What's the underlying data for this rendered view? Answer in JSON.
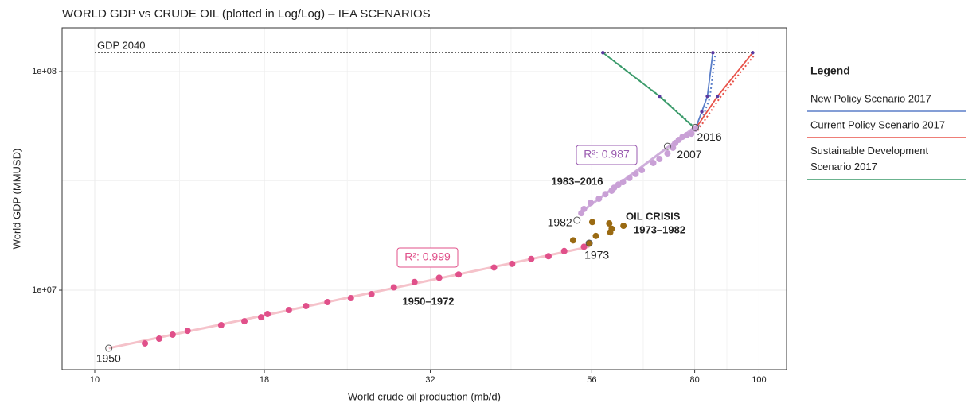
{
  "chart_data": {
    "type": "scatter",
    "title": "WORLD GDP vs CRUDE OIL (plotted in Log/Log) – IEA SCENARIOS",
    "xlabel": "World crude oil production (mb/d)",
    "ylabel": "World GDP (MMUSD)",
    "xlog": true,
    "ylog": true,
    "grid": true,
    "xlim": [
      8.93,
      110
    ],
    "ylim": [
      4330000,
      158500000
    ],
    "xticks": [
      10,
      18,
      32,
      56,
      80,
      100
    ],
    "yticks": [
      {
        "value": 10000000,
        "label": "1e+07"
      },
      {
        "value": 100000000,
        "label": "1e+08"
      }
    ],
    "series": [
      {
        "name": "1950–1972",
        "color": "#e0508a",
        "x": [
          11.9,
          12.5,
          13.1,
          13.8,
          15.5,
          16.8,
          17.8,
          18.2,
          19.6,
          20.8,
          22.4,
          24.3,
          26.1,
          28.2,
          30.3,
          33.0,
          35.3,
          39.9,
          42.5,
          45.4,
          48.2,
          50.9,
          54.5
        ],
        "y": [
          5710000,
          6000000,
          6260000,
          6520000,
          6920000,
          7210000,
          7520000,
          7780000,
          8110000,
          8460000,
          8820000,
          9200000,
          9590000,
          10300000,
          10900000,
          11400000,
          11800000,
          12700000,
          13200000,
          13900000,
          14300000,
          15100000,
          15800000
        ]
      },
      {
        "name": "1983–2016",
        "color": "#c9a0d6",
        "x": [
          54.0,
          54.5,
          55.8,
          57.4,
          58.7,
          60.0,
          60.5,
          61.4,
          62.4,
          63.8,
          65.2,
          66.6,
          69.3,
          70.8,
          72.8,
          74.2,
          74.8,
          75.7,
          76.7,
          77.8,
          79.1,
          80.2
        ],
        "y": [
          22500000,
          23500000,
          25100000,
          26200000,
          27500000,
          28500000,
          29400000,
          30400000,
          31200000,
          32600000,
          34000000,
          35400000,
          38200000,
          39800000,
          42200000,
          44800000,
          47100000,
          48700000,
          50300000,
          51200000,
          52000000,
          54700000
        ]
      },
      {
        "name": "1973–1982",
        "color": "#9a6a12",
        "x": [
          52.5,
          55.5,
          56.1,
          59.5,
          59.7,
          60.0,
          62.5,
          56.8
        ],
        "y": [
          16900000,
          16400000,
          20500000,
          20200000,
          18400000,
          19100000,
          19700000,
          17700000
        ]
      }
    ],
    "fits": [
      {
        "label": "R²: 0.999",
        "color": "#f2b3bd",
        "x": [
          10.5,
          55.5
        ],
        "y": [
          5430000,
          15800000
        ]
      },
      {
        "label": "R²: 0.987",
        "color": "#c29ad2",
        "x": [
          53.7,
          80.6
        ],
        "y": [
          22500000,
          56600000
        ]
      }
    ],
    "highlights": [
      {
        "label": "1950",
        "x": 10.5,
        "y": 5430000
      },
      {
        "label": "1973",
        "x": 55.5,
        "y": 16400000
      },
      {
        "label": "1982",
        "x": 53.2,
        "y": 20900000
      },
      {
        "label": "2007",
        "x": 72.8,
        "y": 45500000
      },
      {
        "label": "2016",
        "x": 80.2,
        "y": 55500000
      }
    ],
    "annotation": "OIL CRISIS",
    "hline": {
      "label": "GDP 2040",
      "value": 122000000,
      "x": [
        10,
        97.8
      ]
    },
    "legend": {
      "title": "Legend",
      "position": "right"
    },
    "scenarios": [
      {
        "name": "New Policy Scenario 2017",
        "color": "#5b7fc9",
        "x": [
          80.2,
          82.0,
          83.6,
          85.2
        ],
        "y": [
          54700000,
          65500000,
          77100000,
          122000000
        ]
      },
      {
        "name": "Current Policy Scenario 2017",
        "color": "#e8534a",
        "x": [
          80.2,
          86.6,
          97.8
        ],
        "y": [
          54700000,
          77100000,
          122000000
        ]
      },
      {
        "name": "Sustainable Development Scenario 2017",
        "color": "#3a9a6a",
        "x": [
          80.2,
          70.8,
          58.2
        ],
        "y": [
          54700000,
          77100000,
          122000000
        ]
      }
    ]
  }
}
